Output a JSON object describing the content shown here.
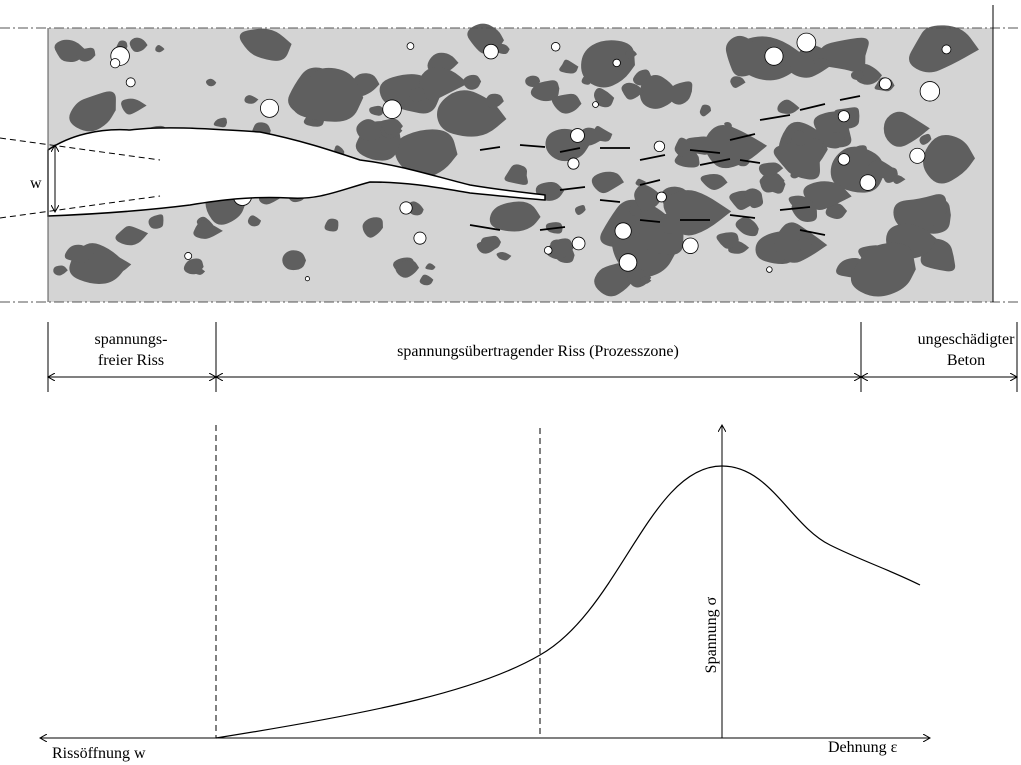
{
  "specimen": {
    "crack_width_label": "w"
  },
  "zones": [
    {
      "label_lines": [
        "spannungs-",
        "freier Riss"
      ]
    },
    {
      "label_lines": [
        "spannungsübertragender Riss (Prozesszone)"
      ]
    },
    {
      "label_lines": [
        "ungeschädigter",
        "Beton"
      ]
    }
  ],
  "graph": {
    "y_axis_label": "Spannung σ",
    "x_left_label": "Rissöffnung w",
    "x_right_label": "Dehnung ε"
  }
}
